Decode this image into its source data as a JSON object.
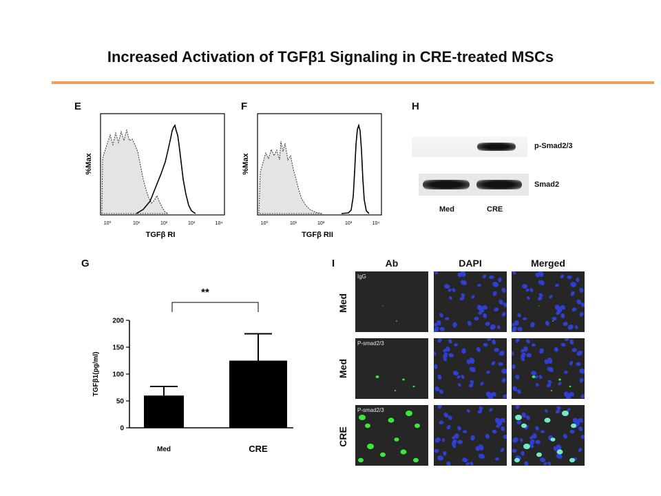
{
  "title": "Increased Activation of TGFβ1 Signaling in CRE-treated MSCs",
  "colors": {
    "rule": "#F0A05A",
    "bar": "#000000",
    "micro_bg": "#262626",
    "dapi": "#2f3fd0",
    "green": "#3cff3c"
  },
  "panels": {
    "E": {
      "label": "E",
      "ylabel": "%Max",
      "xlabel": "TGFβ RI",
      "ticks": [
        "10⁰",
        "10¹",
        "10²",
        "10³",
        "10⁴"
      ]
    },
    "F": {
      "label": "F",
      "ylabel": "%Max",
      "xlabel": "TGFβ RII",
      "ticks": [
        "10⁰",
        "10¹",
        "10²",
        "10³",
        "10⁴"
      ]
    },
    "H": {
      "label": "H",
      "bands": [
        "p-Smad2/3",
        "Smad2"
      ],
      "lanes": [
        "Med",
        "CRE"
      ]
    },
    "G": {
      "label": "G",
      "significance": "**"
    },
    "I": {
      "label": "I",
      "columns": [
        "Ab",
        "DAPI",
        "Merged"
      ],
      "rows": [
        {
          "label": "Med",
          "stain": "IgG"
        },
        {
          "label": "Med",
          "stain": "P-smad2/3"
        },
        {
          "label": "CRE",
          "stain": "P-smad2/3"
        }
      ]
    }
  },
  "chart_data": {
    "type": "bar",
    "categories": [
      "Med",
      "CRE"
    ],
    "values": [
      60,
      125
    ],
    "error": [
      17,
      50
    ],
    "ylabel": "TGFβ1(pg/ml)",
    "ylim": [
      0,
      200
    ],
    "yticks": [
      "0",
      "50",
      "100",
      "150",
      "200"
    ]
  }
}
